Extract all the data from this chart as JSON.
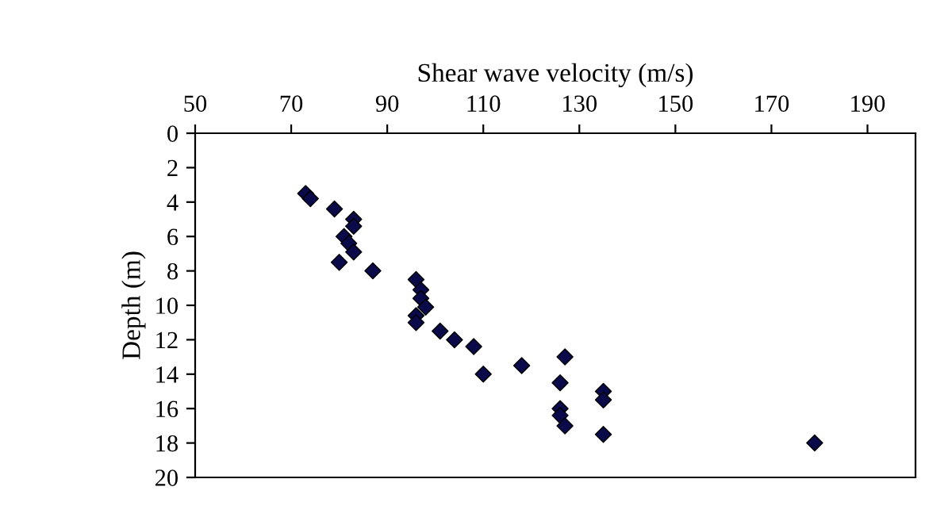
{
  "chart_data": {
    "type": "scatter",
    "xlabel": "Shear wave velocity (m/s)",
    "ylabel": "Depth (m)",
    "xlim": [
      50,
      200
    ],
    "xticks": [
      50,
      70,
      90,
      110,
      130,
      150,
      170,
      190
    ],
    "ylim": [
      20,
      0
    ],
    "yticks": [
      0,
      2,
      4,
      6,
      8,
      10,
      12,
      14,
      16,
      18,
      20
    ],
    "grid": false,
    "legend": false,
    "marker": "diamond",
    "series": [
      {
        "color": "#0a0a4a",
        "x": [
          73,
          74,
          79,
          83,
          83,
          81,
          82,
          83,
          80,
          87,
          96,
          97,
          97,
          98,
          96,
          96,
          101,
          104,
          108,
          110,
          118,
          127,
          126,
          126,
          126,
          127,
          135,
          135,
          135,
          179
        ],
        "values": [
          3.5,
          3.8,
          4.4,
          5.0,
          5.4,
          6.0,
          6.4,
          6.9,
          7.5,
          8.0,
          8.5,
          9.1,
          9.6,
          10.1,
          10.6,
          11.0,
          11.5,
          12.0,
          12.4,
          14.0,
          13.5,
          13.0,
          14.5,
          16.0,
          16.4,
          17.0,
          15.0,
          15.5,
          17.5,
          18.0
        ]
      }
    ]
  }
}
